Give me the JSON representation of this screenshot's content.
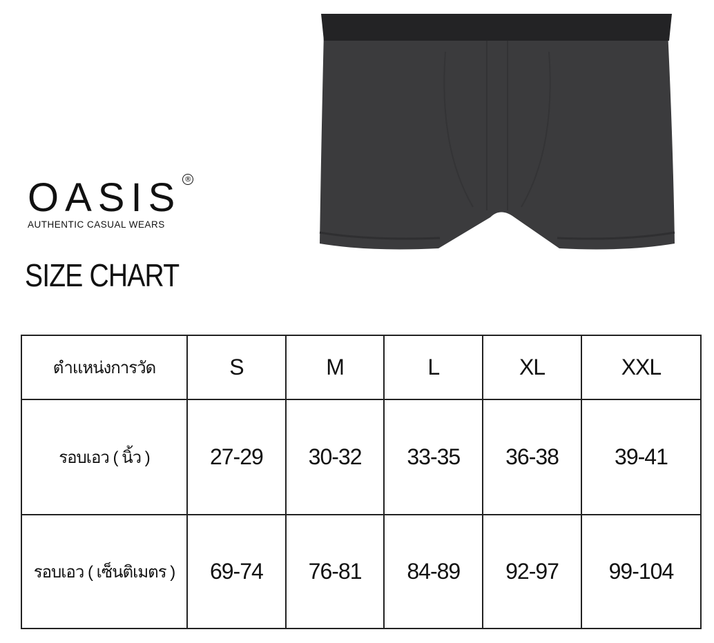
{
  "brand": {
    "name": "OASIS",
    "registered": "®",
    "tagline": "AUTHENTIC CASUAL WEARS"
  },
  "title": "SIZE CHART",
  "product_image": {
    "description_icon": "boxer-briefs",
    "color": "#3a3a3c",
    "waistband_color": "#222224"
  },
  "table": {
    "header": [
      "ตำแหน่งการวัด",
      "S",
      "M",
      "L",
      "XL",
      "XXL"
    ],
    "rows": [
      [
        "รอบเอว ( นิ้ว )",
        "27-29",
        "30-32",
        "33-35",
        "36-38",
        "39-41"
      ],
      [
        "รอบเอว ( เซ็นติเมตร )",
        "69-74",
        "76-81",
        "84-89",
        "92-97",
        "99-104"
      ]
    ]
  }
}
